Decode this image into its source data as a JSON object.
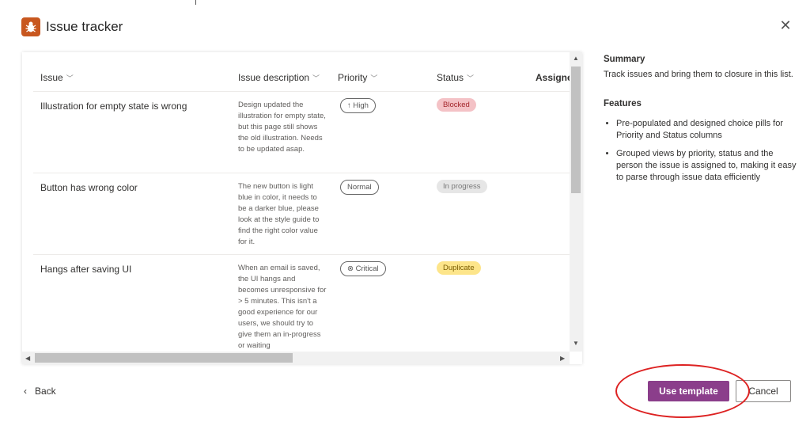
{
  "dialog": {
    "title": "Issue tracker",
    "close_icon": "close-icon",
    "app_icon": "bug-icon",
    "app_icon_color": "#c8571f"
  },
  "table": {
    "columns": [
      "Issue",
      "Issue description",
      "Priority",
      "Status",
      "Assigne"
    ],
    "rows": [
      {
        "issue": "Illustration for empty state is wrong",
        "description": "Design updated the illustration for empty state, but this page still shows the old illustration. Needs to be updated asap.",
        "priority": "↑ High",
        "status": "Blocked",
        "status_color": "#f4c2c6"
      },
      {
        "issue": "Button has wrong color",
        "description": "The new button is light blue in color, it needs to be a darker blue, please look at the style guide to find the right color value for it.",
        "priority": "Normal",
        "status": "In progress",
        "status_color": "#e6e6e6"
      },
      {
        "issue": "Hangs after saving UI",
        "description": "When an email is saved, the UI hangs and becomes unresponsive for > 5 minutes. This isn't a good experience for our users, we should try to give them an in-progress or waiting",
        "priority": "⊗ Critical",
        "status": "Duplicate",
        "status_color": "#fde58a"
      }
    ]
  },
  "panel": {
    "summary_heading": "Summary",
    "summary_text": "Track issues and bring them to closure in this list.",
    "features_heading": "Features",
    "features": [
      "Pre-populated and designed choice pills for Priority and Status columns",
      "Grouped views by priority, status and the person the issue is assigned to, making it easy to parse through issue data efficiently"
    ]
  },
  "footer": {
    "back_label": "Back",
    "use_template_label": "Use template",
    "cancel_label": "Cancel",
    "accent": "#8b3e8b"
  }
}
